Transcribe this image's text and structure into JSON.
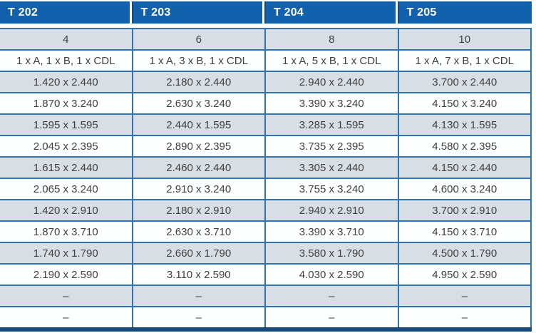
{
  "table": {
    "headers": [
      "T 202",
      "T 203",
      "T 204",
      "T 205"
    ],
    "rows": [
      {
        "type": "panel-count",
        "values": [
          "4",
          "6",
          "8",
          "10"
        ]
      },
      {
        "type": "configuration",
        "values": [
          "1 x A, 1 x B, 1 x CDL",
          "1 x A, 3 x B, 1 x CDL",
          "1 x A, 5 x B, 1 x CDL",
          "1 x A, 7 x B, 1 x CDL"
        ]
      },
      {
        "type": "size",
        "values": [
          "1.420 x 2.440",
          "2.180 x 2.440",
          "2.940 x 2.440",
          "3.700 x 2.440"
        ]
      },
      {
        "type": "size",
        "values": [
          "1.870 x 3.240",
          "2.630 x 3.240",
          "3.390 x 3.240",
          "4.150 x 3.240"
        ]
      },
      {
        "type": "size",
        "values": [
          "1.595 x 1.595",
          "2.440 x 1.595",
          "3.285 x 1.595",
          "4.130 x 1.595"
        ]
      },
      {
        "type": "size",
        "values": [
          "2.045 x 2.395",
          "2.890 x 2.395",
          "3.735 x 2.395",
          "4.580 x 2.395"
        ]
      },
      {
        "type": "size",
        "values": [
          "1.615 x 2.440",
          "2.460 x 2.440",
          "3.305 x 2.440",
          "4.150 x 2.440"
        ]
      },
      {
        "type": "size",
        "values": [
          "2.065 x 3.240",
          "2.910 x 3.240",
          "3.755 x 3.240",
          "4.600 x 3.240"
        ]
      },
      {
        "type": "size",
        "values": [
          "1.420 x 2.910",
          "2.180 x 2.910",
          "2.940 x 2.910",
          "3.700 x 2.910"
        ]
      },
      {
        "type": "size",
        "values": [
          "1.870 x 3.710",
          "2.630 x 3.710",
          "3.390 x 3.710",
          "4.150 x 3.710"
        ]
      },
      {
        "type": "size",
        "values": [
          "1.740 x 1.790",
          "2.660 x 1.790",
          "3.580 x 1.790",
          "4.500 x 1.790"
        ]
      },
      {
        "type": "size",
        "values": [
          "2.190 x 2.590",
          "3.110 x 2.590",
          "4.030 x 2.590",
          "4.950 x 2.590"
        ]
      },
      {
        "type": "empty",
        "values": [
          "–",
          "–",
          "–",
          "–"
        ]
      },
      {
        "type": "empty",
        "values": [
          "–",
          "–",
          "–",
          "–"
        ]
      }
    ]
  },
  "colors": {
    "header_bg": "#1161ac",
    "header_text": "#ffffff",
    "navy_border": "#17497c",
    "grid_line": "#2f73b4",
    "shaded_row_bg": "#d8dfe4",
    "plain_row_bg": "#fdfefe",
    "body_text": "#404040"
  }
}
